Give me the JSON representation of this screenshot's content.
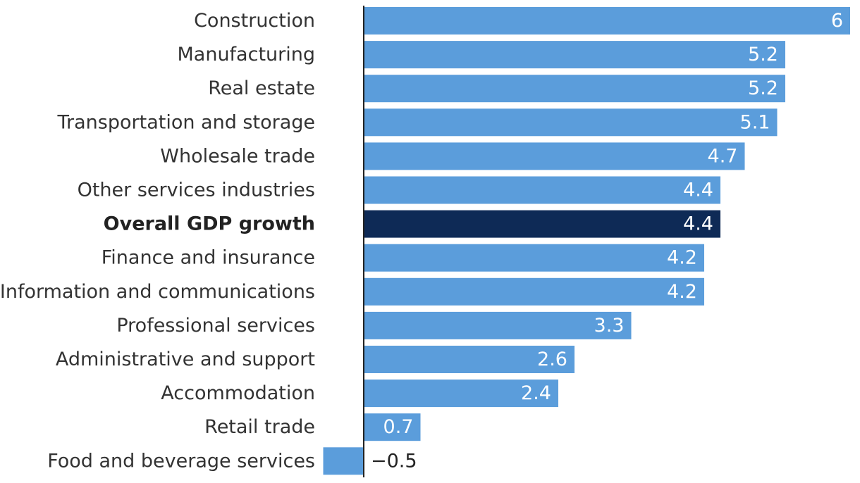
{
  "chart_data": {
    "type": "bar",
    "orientation": "horizontal",
    "title": "",
    "xlabel": "",
    "ylabel": "",
    "categories": [
      "Construction",
      "Manufacturing",
      "Real estate",
      "Transportation and storage",
      "Wholesale trade",
      "Other services industries",
      "Overall GDP growth",
      "Finance and insurance",
      "Information and communications",
      "Professional services",
      "Administrative and support",
      "Accommodation",
      "Retail trade",
      "Food and beverage services"
    ],
    "values": [
      6,
      5.2,
      5.2,
      5.1,
      4.7,
      4.4,
      4.4,
      4.2,
      4.2,
      3.3,
      2.6,
      2.4,
      0.7,
      -0.5
    ],
    "value_labels": [
      "6",
      "5.2",
      "5.2",
      "5.1",
      "4.7",
      "4.4",
      "4.4",
      "4.2",
      "4.2",
      "3.3",
      "2.6",
      "2.4",
      "0.7",
      "−0.5"
    ],
    "highlight_category": "Overall GDP growth",
    "xlim": [
      -0.5,
      6
    ],
    "grid": false,
    "legend": "none",
    "colors": {
      "bar": "#5b9ddb",
      "highlight": "#0e2a56",
      "axis": "#222222",
      "label_inside": "#ffffff",
      "label_outside": "#222222"
    }
  }
}
